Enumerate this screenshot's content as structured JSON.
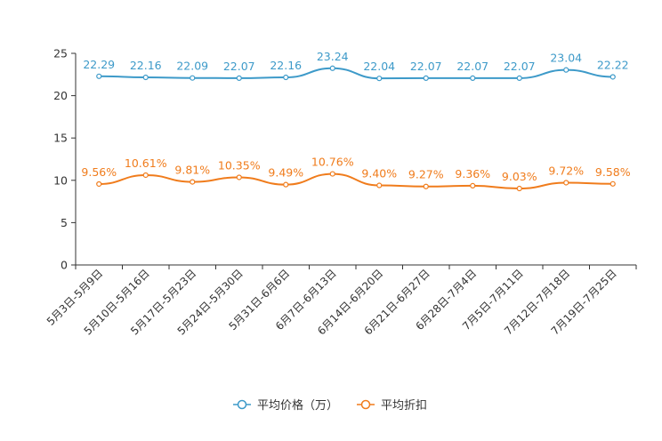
{
  "chart_data": {
    "type": "line",
    "categories": [
      "5月3日-5月9日",
      "5月10日-5月16日",
      "5月17日-5月23日",
      "5月24日-5月30日",
      "5月31日-6月6日",
      "6月7日-6月13日",
      "6月14日-6月20日",
      "6月21日-6月27日",
      "6月28日-7月4日",
      "7月5日-7月11日",
      "7月12日-7月18日",
      "7月19日-7月25日"
    ],
    "ylim": [
      0,
      25
    ],
    "yticks": [
      0,
      5,
      10,
      15,
      20,
      25
    ],
    "series": [
      {
        "name": "平均价格（万）",
        "color": "#3d9ac9",
        "values": [
          22.29,
          22.16,
          22.09,
          22.07,
          22.16,
          23.24,
          22.04,
          22.07,
          22.07,
          22.07,
          23.04,
          22.22
        ],
        "labels": [
          "22.29",
          "22.16",
          "22.09",
          "22.07",
          "22.16",
          "23.24",
          "22.04",
          "22.07",
          "22.07",
          "22.07",
          "23.04",
          "22.22"
        ]
      },
      {
        "name": "平均折扣",
        "color": "#f07c1c",
        "values": [
          9.56,
          10.61,
          9.81,
          10.35,
          9.49,
          10.76,
          9.4,
          9.27,
          9.36,
          9.03,
          9.72,
          9.58
        ],
        "labels": [
          "9.56%",
          "10.61%",
          "9.81%",
          "10.35%",
          "9.49%",
          "10.76%",
          "9.40%",
          "9.27%",
          "9.36%",
          "9.03%",
          "9.72%",
          "9.58%"
        ]
      }
    ],
    "legend_position": "bottom-center"
  }
}
